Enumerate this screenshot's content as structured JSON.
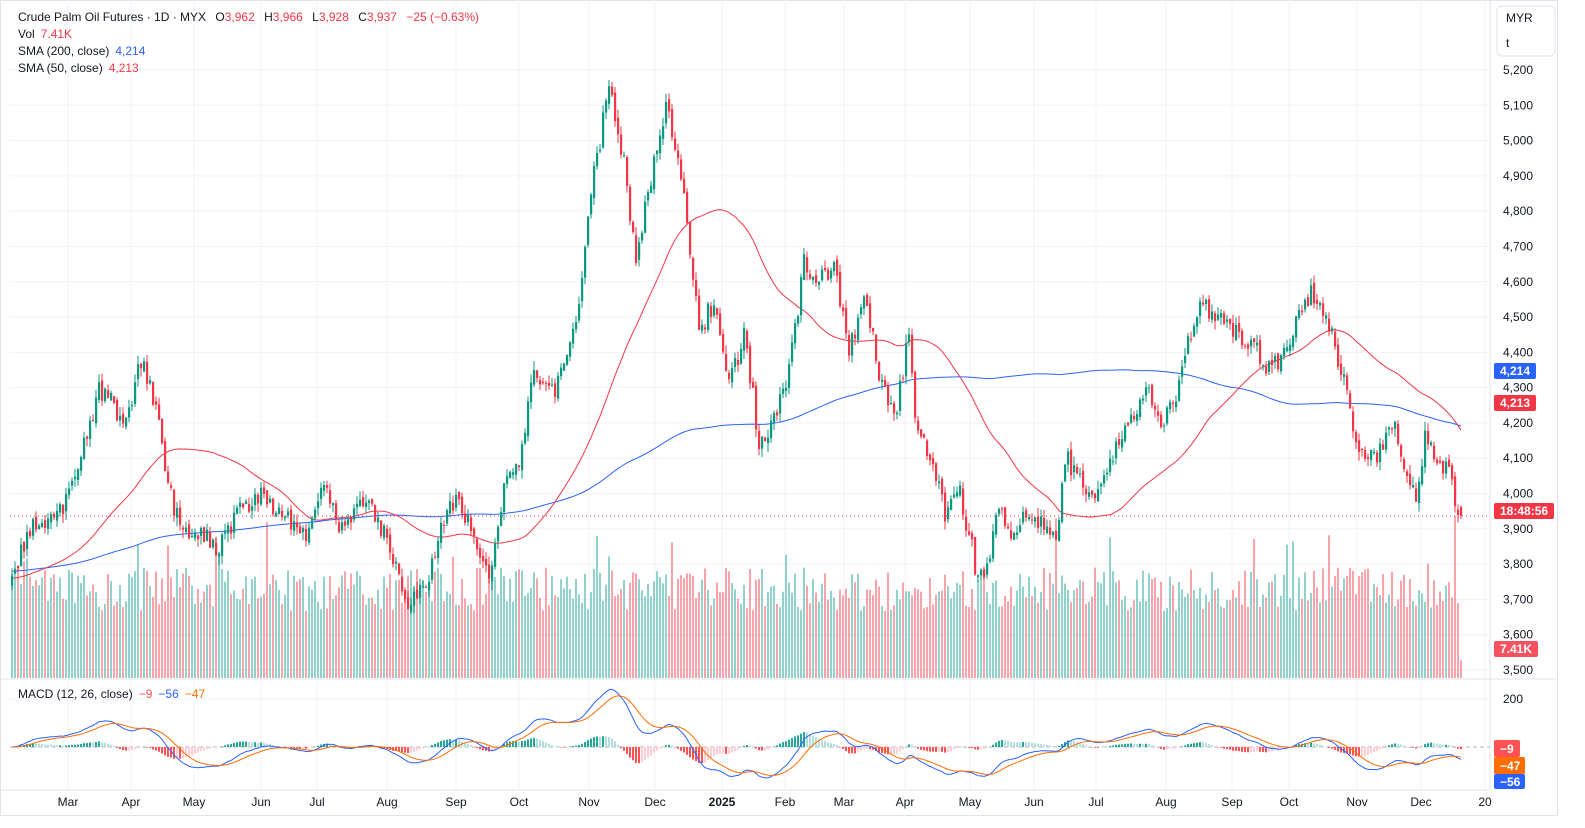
{
  "legend": {
    "symbol": "Crude Palm Oil Futures · 1D · MYX",
    "o_label": "O",
    "o": "3,962",
    "h_label": "H",
    "h": "3,966",
    "l_label": "L",
    "l": "3,928",
    "c_label": "C",
    "c": "3,937",
    "change": "−25 (−0.63%)",
    "vol_label": "Vol",
    "vol": "7.41K",
    "sma200_label": "SMA (200, close)",
    "sma200": "4,214",
    "sma50_label": "SMA (50, close)",
    "sma50": "4,213",
    "macd_label": "MACD (12, 26, close)",
    "macd_hist": "−9",
    "macd_line": "−56",
    "macd_signal": "−47"
  },
  "currency": {
    "top": "MYR",
    "bottom": "t"
  },
  "tags": {
    "sma200": "4,214",
    "sma50": "4,213",
    "countdown": "18:48:56",
    "volume": "7.41K",
    "macd_hist": "−9",
    "macd_signal": "−47",
    "macd_line": "−56"
  },
  "colors": {
    "up": "#089981",
    "down": "#f23645",
    "sma200": "#2962ff",
    "sma50": "#f23645",
    "macd": "#2962ff",
    "signal": "#ff6d00"
  },
  "chart_data": {
    "type": "candlestick",
    "title": "Crude Palm Oil Futures · 1D · MYX",
    "y_axis_ticks": [
      "5,200",
      "5,100",
      "5,000",
      "4,900",
      "4,800",
      "4,700",
      "4,600",
      "4,500",
      "4,400",
      "4,300",
      "4,200",
      "4,100",
      "4,000",
      "3,900",
      "3,800",
      "3,700",
      "3,600",
      "3,500"
    ],
    "ylim": [
      3500,
      5200
    ],
    "macd_axis_ticks": [
      "200"
    ],
    "x_axis_ticks": [
      "Mar",
      "Apr",
      "May",
      "Jun",
      "Jul",
      "Aug",
      "Sep",
      "Oct",
      "Nov",
      "Dec",
      "2025",
      "Feb",
      "Mar",
      "Apr",
      "May",
      "Jun",
      "Jul",
      "Aug",
      "Sep",
      "Oct",
      "Nov",
      "Dec",
      "20"
    ],
    "bar_count": 484,
    "close_keypoints_bar_index_price": [
      [
        0,
        3760
      ],
      [
        6,
        3900
      ],
      [
        16,
        3950
      ],
      [
        23,
        4100
      ],
      [
        29,
        4300
      ],
      [
        38,
        4200
      ],
      [
        43,
        4380
      ],
      [
        48,
        4250
      ],
      [
        51,
        4050
      ],
      [
        56,
        3900
      ],
      [
        63,
        3880
      ],
      [
        69,
        3850
      ],
      [
        76,
        3950
      ],
      [
        82,
        4000
      ],
      [
        89,
        3950
      ],
      [
        98,
        3880
      ],
      [
        104,
        4050
      ],
      [
        109,
        3920
      ],
      [
        119,
        3970
      ],
      [
        126,
        3850
      ],
      [
        131,
        3700
      ],
      [
        138,
        3720
      ],
      [
        143,
        3900
      ],
      [
        148,
        3980
      ],
      [
        154,
        3900
      ],
      [
        159,
        3750
      ],
      [
        164,
        4000
      ],
      [
        169,
        4100
      ],
      [
        174,
        4350
      ],
      [
        181,
        4300
      ],
      [
        188,
        4500
      ],
      [
        191,
        4700
      ],
      [
        194,
        4900
      ],
      [
        199,
        5150
      ],
      [
        204,
        4950
      ],
      [
        208,
        4650
      ],
      [
        213,
        4900
      ],
      [
        218,
        5100
      ],
      [
        223,
        4900
      ],
      [
        226,
        4700
      ],
      [
        229,
        4450
      ],
      [
        234,
        4550
      ],
      [
        239,
        4300
      ],
      [
        244,
        4450
      ],
      [
        249,
        4150
      ],
      [
        254,
        4200
      ],
      [
        259,
        4350
      ],
      [
        264,
        4650
      ],
      [
        269,
        4600
      ],
      [
        274,
        4650
      ],
      [
        279,
        4400
      ],
      [
        284,
        4550
      ],
      [
        289,
        4350
      ],
      [
        294,
        4200
      ],
      [
        299,
        4450
      ],
      [
        301,
        4200
      ],
      [
        306,
        4100
      ],
      [
        311,
        3950
      ],
      [
        316,
        4000
      ],
      [
        321,
        3800
      ],
      [
        324,
        3750
      ],
      [
        329,
        3950
      ],
      [
        334,
        3870
      ],
      [
        339,
        3950
      ],
      [
        344,
        3900
      ],
      [
        349,
        3900
      ],
      [
        351,
        4100
      ],
      [
        356,
        4050
      ],
      [
        359,
        3980
      ],
      [
        363,
        4000
      ],
      [
        368,
        4150
      ],
      [
        373,
        4200
      ],
      [
        378,
        4300
      ],
      [
        383,
        4200
      ],
      [
        388,
        4250
      ],
      [
        391,
        4400
      ],
      [
        396,
        4550
      ],
      [
        401,
        4500
      ],
      [
        408,
        4450
      ],
      [
        414,
        4420
      ],
      [
        419,
        4350
      ],
      [
        424,
        4400
      ],
      [
        429,
        4500
      ],
      [
        433,
        4580
      ],
      [
        438,
        4500
      ],
      [
        443,
        4350
      ],
      [
        446,
        4250
      ],
      [
        449,
        4100
      ],
      [
        456,
        4120
      ],
      [
        461,
        4200
      ],
      [
        464,
        4050
      ],
      [
        468,
        3980
      ],
      [
        471,
        4150
      ],
      [
        476,
        4100
      ],
      [
        479,
        4050
      ],
      [
        483,
        3937
      ]
    ],
    "last_bar": {
      "open": 3962,
      "high": 3966,
      "low": 3928,
      "close": 3937,
      "volume_k": 7.41
    },
    "indicators": {
      "sma200_last": 4214,
      "sma50_last": 4213,
      "macd_last": -56,
      "signal_last": -47,
      "hist_last": -9
    },
    "grid": true
  }
}
